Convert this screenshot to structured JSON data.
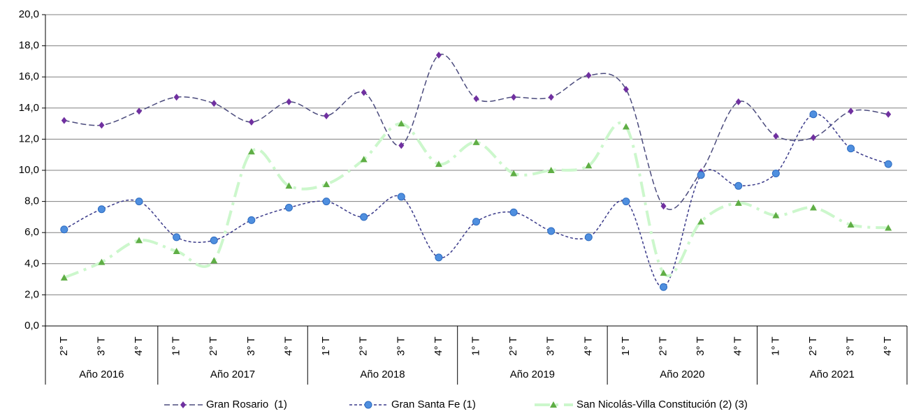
{
  "chart_data": {
    "type": "line",
    "category_groups": [
      {
        "label": "Año 2016",
        "categories": [
          "2° T",
          "3° T",
          "4° T"
        ]
      },
      {
        "label": "Año 2017",
        "categories": [
          "1° T",
          "2° T",
          "3° T",
          "4° T"
        ]
      },
      {
        "label": "Año 2018",
        "categories": [
          "1° T",
          "2° T",
          "3° T",
          "4° T"
        ]
      },
      {
        "label": "Año 2019",
        "categories": [
          "1° T",
          "2° T",
          "3° T",
          "4° T"
        ]
      },
      {
        "label": "Año 2020",
        "categories": [
          "1° T",
          "2° T",
          "3° T",
          "4° T"
        ]
      },
      {
        "label": "Año 2021",
        "categories": [
          "1° T",
          "2° T",
          "3° T",
          "4° T"
        ]
      }
    ],
    "series": [
      {
        "name": "Gran Rosario  (1)",
        "color": "#7030a0",
        "line_color": "#4b4b7d",
        "marker": "diamond",
        "dash": "8 4",
        "values": [
          13.2,
          12.9,
          13.8,
          14.7,
          14.3,
          13.1,
          14.4,
          13.5,
          15.0,
          11.6,
          17.4,
          14.6,
          14.7,
          14.7,
          16.1,
          15.2,
          7.7,
          9.9,
          14.4,
          12.2,
          12.1,
          13.8,
          13.6
        ]
      },
      {
        "name": "Gran Santa Fe (1)",
        "color": "#4f8fdf",
        "line_color": "#3a3a8a",
        "marker": "circle",
        "dash": "4 3",
        "values": [
          6.2,
          7.5,
          8.0,
          5.7,
          5.5,
          6.8,
          7.6,
          8.0,
          7.0,
          8.3,
          4.4,
          6.7,
          7.3,
          6.1,
          5.7,
          8.0,
          2.5,
          9.7,
          9.0,
          9.8,
          13.6,
          11.4,
          10.4
        ]
      },
      {
        "name": "San Nicolás-Villa Constitución (2) (3)",
        "color": "#5fae45",
        "line_color": "#ccf7cc",
        "marker": "triangle",
        "dash": "22 8 4 8",
        "values": [
          3.1,
          4.1,
          5.5,
          4.8,
          4.2,
          11.2,
          9.0,
          9.1,
          10.7,
          13.0,
          10.4,
          11.8,
          9.8,
          10.0,
          10.3,
          12.8,
          3.4,
          6.7,
          7.9,
          7.1,
          7.6,
          6.5,
          6.3
        ]
      }
    ],
    "ylim": [
      0,
      20
    ],
    "yticks": [
      {
        "value": 0,
        "label": "0,0"
      },
      {
        "value": 2,
        "label": "2,0"
      },
      {
        "value": 4,
        "label": "4,0"
      },
      {
        "value": 6,
        "label": "6,0"
      },
      {
        "value": 8,
        "label": "8,0"
      },
      {
        "value": 10,
        "label": "10,0"
      },
      {
        "value": 12,
        "label": "12,0"
      },
      {
        "value": 14,
        "label": "14,0"
      },
      {
        "value": 16,
        "label": "16,0"
      },
      {
        "value": 18,
        "label": "18,0"
      },
      {
        "value": 20,
        "label": "20,0"
      }
    ],
    "grid": true
  }
}
